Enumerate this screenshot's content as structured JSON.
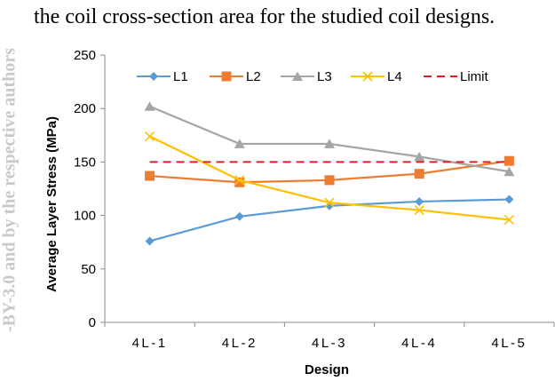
{
  "caption": {
    "text": "the coil cross-section area for the studied coil designs.",
    "watermark": "-BY-3.0 and by the respective authors"
  },
  "chart_data": {
    "type": "line",
    "title": "",
    "xlabel": "Design",
    "ylabel": "Average Layer Stress (MPa)",
    "categories": [
      "4L-1",
      "4L-2",
      "4L-3",
      "4L-4",
      "4L-5"
    ],
    "ylim": [
      0,
      250
    ],
    "yticks": [
      0,
      50,
      100,
      150,
      200,
      250
    ],
    "grid": false,
    "legend_position": "top",
    "series": [
      {
        "name": "L1",
        "values": [
          76,
          99,
          109,
          113,
          115
        ],
        "color": "#5b9bd5",
        "marker": "diamond"
      },
      {
        "name": "L2",
        "values": [
          137,
          131,
          133,
          139,
          151
        ],
        "color": "#ed7d31",
        "marker": "square"
      },
      {
        "name": "L3",
        "values": [
          202,
          167,
          167,
          155,
          141
        ],
        "color": "#a5a5a5",
        "marker": "triangle"
      },
      {
        "name": "L4",
        "values": [
          174,
          133,
          112,
          105,
          96
        ],
        "color": "#ffc000",
        "marker": "x"
      },
      {
        "name": "Limit",
        "values": [
          150,
          150,
          150,
          150,
          150
        ],
        "color": "#e02020",
        "marker": "none",
        "dashed": true
      }
    ]
  }
}
